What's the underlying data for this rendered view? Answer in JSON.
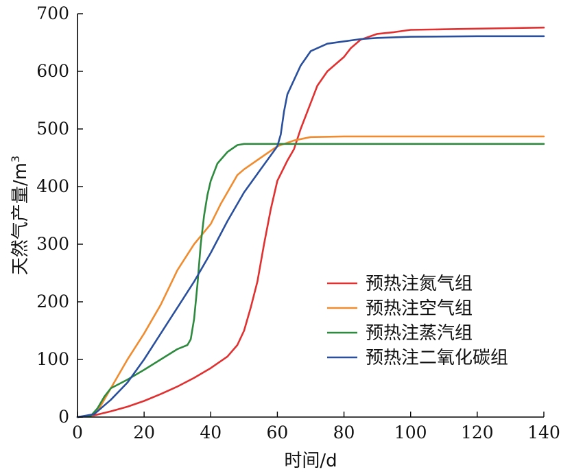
{
  "chart_data": {
    "type": "line",
    "xlabel": "时间/d",
    "ylabel": "天然气产量/m",
    "ylabel_sup": "3",
    "xlim": [
      0,
      140
    ],
    "ylim": [
      0,
      700
    ],
    "xticks": [
      0,
      20,
      40,
      60,
      80,
      100,
      120,
      140
    ],
    "yticks": [
      0,
      100,
      200,
      300,
      400,
      500,
      600,
      700
    ],
    "xtick_labels": [
      "0",
      "20",
      "40",
      "60",
      "80",
      "100",
      "120",
      "140"
    ],
    "ytick_labels": [
      "0",
      "100",
      "200",
      "300",
      "400",
      "500",
      "600",
      "700"
    ],
    "grid": false,
    "legend_position": "lower-right",
    "series": [
      {
        "name": "预热注氮气组",
        "color": "#e03030",
        "points": [
          [
            0,
            0
          ],
          [
            5,
            3
          ],
          [
            10,
            10
          ],
          [
            15,
            18
          ],
          [
            20,
            28
          ],
          [
            25,
            40
          ],
          [
            30,
            53
          ],
          [
            35,
            68
          ],
          [
            40,
            85
          ],
          [
            45,
            105
          ],
          [
            48,
            125
          ],
          [
            50,
            150
          ],
          [
            52,
            190
          ],
          [
            54,
            235
          ],
          [
            56,
            300
          ],
          [
            58,
            360
          ],
          [
            60,
            410
          ],
          [
            63,
            445
          ],
          [
            65,
            465
          ],
          [
            67,
            500
          ],
          [
            70,
            545
          ],
          [
            72,
            575
          ],
          [
            75,
            600
          ],
          [
            80,
            625
          ],
          [
            82,
            640
          ],
          [
            85,
            655
          ],
          [
            90,
            665
          ],
          [
            95,
            668
          ],
          [
            100,
            672
          ],
          [
            110,
            673
          ],
          [
            120,
            674
          ],
          [
            130,
            675
          ],
          [
            140,
            676
          ]
        ]
      },
      {
        "name": "预热注空气组",
        "color": "#f08c30",
        "points": [
          [
            0,
            0
          ],
          [
            4,
            2
          ],
          [
            6,
            10
          ],
          [
            8,
            30
          ],
          [
            10,
            50
          ],
          [
            15,
            100
          ],
          [
            20,
            145
          ],
          [
            25,
            195
          ],
          [
            30,
            255
          ],
          [
            35,
            300
          ],
          [
            40,
            335
          ],
          [
            43,
            370
          ],
          [
            45,
            390
          ],
          [
            48,
            420
          ],
          [
            50,
            430
          ],
          [
            55,
            450
          ],
          [
            60,
            470
          ],
          [
            65,
            480
          ],
          [
            70,
            486
          ],
          [
            80,
            487
          ],
          [
            100,
            487
          ],
          [
            120,
            487
          ],
          [
            140,
            487
          ]
        ]
      },
      {
        "name": "预热注蒸汽组",
        "color": "#2e8a3e",
        "points": [
          [
            0,
            0
          ],
          [
            4,
            2
          ],
          [
            6,
            15
          ],
          [
            8,
            35
          ],
          [
            10,
            50
          ],
          [
            15,
            65
          ],
          [
            20,
            82
          ],
          [
            25,
            100
          ],
          [
            30,
            118
          ],
          [
            33,
            125
          ],
          [
            34,
            135
          ],
          [
            35,
            170
          ],
          [
            36,
            230
          ],
          [
            37,
            300
          ],
          [
            38,
            350
          ],
          [
            39,
            385
          ],
          [
            40,
            410
          ],
          [
            42,
            440
          ],
          [
            45,
            460
          ],
          [
            48,
            472
          ],
          [
            50,
            474
          ],
          [
            60,
            474
          ],
          [
            80,
            474
          ],
          [
            100,
            474
          ],
          [
            120,
            474
          ],
          [
            140,
            474
          ]
        ]
      },
      {
        "name": "预热注二氧化碳组",
        "color": "#2a4f9c",
        "points": [
          [
            0,
            0
          ],
          [
            5,
            5
          ],
          [
            10,
            30
          ],
          [
            15,
            60
          ],
          [
            20,
            100
          ],
          [
            25,
            145
          ],
          [
            30,
            190
          ],
          [
            35,
            235
          ],
          [
            40,
            285
          ],
          [
            45,
            340
          ],
          [
            50,
            390
          ],
          [
            55,
            430
          ],
          [
            60,
            470
          ],
          [
            61,
            490
          ],
          [
            62,
            530
          ],
          [
            63,
            560
          ],
          [
            65,
            585
          ],
          [
            67,
            610
          ],
          [
            70,
            635
          ],
          [
            75,
            648
          ],
          [
            80,
            652
          ],
          [
            85,
            656
          ],
          [
            90,
            658
          ],
          [
            100,
            660
          ],
          [
            120,
            661
          ],
          [
            140,
            661
          ]
        ]
      }
    ]
  }
}
